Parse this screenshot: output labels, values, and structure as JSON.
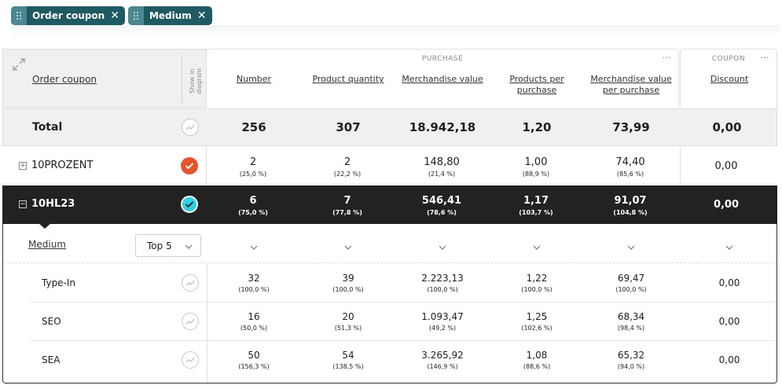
{
  "chips": [
    {
      "label": "Order coupon",
      "close": "✕"
    },
    {
      "label": "Medium",
      "close": "✕"
    }
  ],
  "header": {
    "row_label": "Order coupon",
    "show_in_diagram": "Show in diagram",
    "group_purchase": "PURCHASE",
    "group_coupon": "COUPON",
    "menu": "···",
    "columns": [
      "Number",
      "Product quantity",
      "Merchandise value",
      "Products per purchase",
      "Merchandise value per purchase",
      "Discount"
    ]
  },
  "total": {
    "label": "Total",
    "values": [
      "256",
      "307",
      "18.942,18",
      "1,20",
      "73,99",
      "0,00"
    ]
  },
  "rows": [
    {
      "label": "10PROZENT",
      "values": [
        "2",
        "2",
        "148,80",
        "1,00",
        "74,40",
        "0,00"
      ],
      "pcts": [
        "(25,0 %)",
        "(22,2 %)",
        "(21,4 %)",
        "(88,9 %)",
        "(85,6 %)"
      ],
      "diagram_color": "#e8532c"
    },
    {
      "label": "10HL23",
      "values": [
        "6",
        "7",
        "546,41",
        "1,17",
        "91,07",
        "0,00"
      ],
      "pcts": [
        "(75,0 %)",
        "(77,8 %)",
        "(78,6 %)",
        "(103,7 %)",
        "(104,8 %)"
      ],
      "diagram_color": "#27d3e5"
    }
  ],
  "drilldown": {
    "dimension": "Medium",
    "top_select": "Top 5",
    "rows": [
      {
        "label": "Type-In",
        "values": [
          "32",
          "39",
          "2.223,13",
          "1,22",
          "69,47",
          "0,00"
        ],
        "pcts": [
          "(100,0 %)",
          "(100,0 %)",
          "(100,0 %)",
          "(100,0 %)",
          "(100,0 %)"
        ]
      },
      {
        "label": "SEO",
        "values": [
          "16",
          "20",
          "1.093,47",
          "1,25",
          "68,34",
          "0,00"
        ],
        "pcts": [
          "(50,0 %)",
          "(51,3 %)",
          "(49,2 %)",
          "(102,6 %)",
          "(98,4 %)"
        ]
      },
      {
        "label": "SEA",
        "values": [
          "50",
          "54",
          "3.265,92",
          "1,08",
          "65,32",
          "0,00"
        ],
        "pcts": [
          "(156,3 %)",
          "(138,5 %)",
          "(146,9 %)",
          "(88,6 %)",
          "(94,0 %)"
        ]
      }
    ]
  }
}
